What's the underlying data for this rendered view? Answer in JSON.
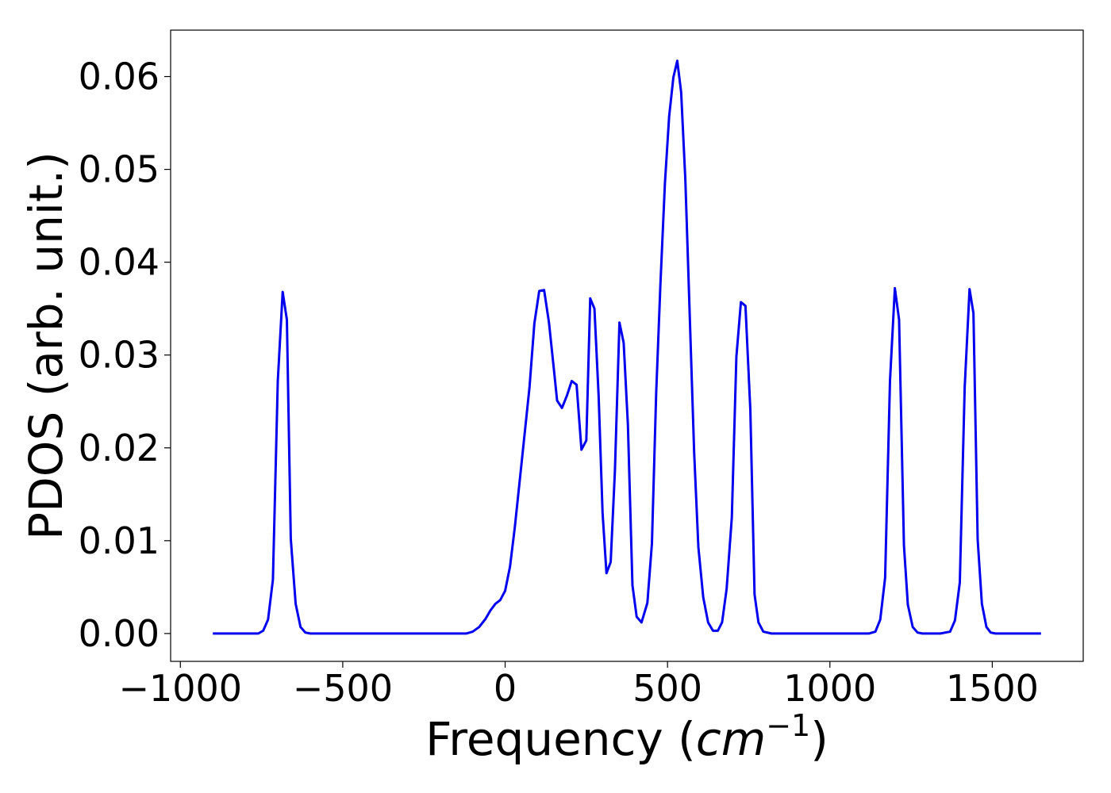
{
  "chart_data": {
    "type": "line",
    "xlabel": "Frequency (",
    "xlabel_math_base": "cm",
    "xlabel_math_exp": "−1",
    "xlabel_close": ")",
    "ylabel": "PDOS (arb. unit.)",
    "xlim": [
      -1030,
      1780
    ],
    "ylim": [
      -0.003,
      0.065
    ],
    "x_ticks": [
      -1000,
      -500,
      0,
      500,
      1000,
      1500
    ],
    "x_tick_labels": [
      "−1000",
      "−500",
      "0",
      "500",
      "1000",
      "1500"
    ],
    "y_ticks": [
      0.0,
      0.01,
      0.02,
      0.03,
      0.04,
      0.05,
      0.06
    ],
    "y_tick_labels": [
      "0.00",
      "0.01",
      "0.02",
      "0.03",
      "0.04",
      "0.05",
      "0.06"
    ],
    "grid": false,
    "line_color": "#0000ee",
    "series": [
      {
        "x": [
          -900,
          -760,
          -745,
          -730,
          -715,
          -700,
          -685,
          -672,
          -660,
          -645,
          -630,
          -615,
          -600,
          -580,
          -120,
          -100,
          -80,
          -60,
          -45,
          -30,
          -15,
          0,
          15,
          30,
          45,
          60,
          75,
          90,
          105,
          120,
          135,
          150,
          160,
          175,
          190,
          205,
          220,
          235,
          250,
          262,
          275,
          288,
          300,
          312,
          325,
          338,
          352,
          365,
          378,
          392,
          405,
          420,
          438,
          452,
          465,
          478,
          492,
          505,
          518,
          530,
          542,
          555,
          568,
          582,
          595,
          610,
          625,
          640,
          655,
          668,
          682,
          698,
          712,
          726,
          740,
          755,
          768,
          780,
          795,
          820,
          1120,
          1140,
          1155,
          1170,
          1185,
          1200,
          1213,
          1228,
          1240,
          1255,
          1270,
          1285,
          1300,
          1340,
          1370,
          1385,
          1400,
          1415,
          1430,
          1442,
          1455,
          1468,
          1482,
          1495,
          1510,
          1540,
          1650
        ],
        "y": [
          0.0,
          0.0,
          0.0003,
          0.0015,
          0.0058,
          0.0272,
          0.0368,
          0.0338,
          0.0102,
          0.0032,
          0.0007,
          0.0001,
          0.0,
          0.0,
          0.0,
          0.0002,
          0.0007,
          0.0016,
          0.0025,
          0.0032,
          0.0036,
          0.0046,
          0.0072,
          0.0115,
          0.0165,
          0.0215,
          0.0265,
          0.0334,
          0.0369,
          0.037,
          0.0335,
          0.0285,
          0.0251,
          0.0243,
          0.0256,
          0.0272,
          0.0268,
          0.0198,
          0.0208,
          0.0361,
          0.035,
          0.0255,
          0.013,
          0.0065,
          0.0077,
          0.0175,
          0.0335,
          0.0313,
          0.0225,
          0.0052,
          0.0018,
          0.0012,
          0.0033,
          0.0097,
          0.0258,
          0.0375,
          0.0485,
          0.0557,
          0.0599,
          0.0617,
          0.0583,
          0.0488,
          0.0347,
          0.0195,
          0.0093,
          0.0039,
          0.0012,
          0.0003,
          0.0003,
          0.0012,
          0.0048,
          0.0125,
          0.0298,
          0.0357,
          0.0353,
          0.0241,
          0.0042,
          0.0012,
          0.0002,
          0.0,
          0.0,
          0.0002,
          0.0015,
          0.006,
          0.0272,
          0.0372,
          0.0338,
          0.0095,
          0.0031,
          0.0007,
          0.0001,
          0.0,
          0.0,
          0.0,
          0.0002,
          0.0014,
          0.0055,
          0.0265,
          0.0371,
          0.0345,
          0.0101,
          0.0032,
          0.0007,
          0.0001,
          0.0,
          0.0,
          0.0
        ]
      }
    ]
  }
}
